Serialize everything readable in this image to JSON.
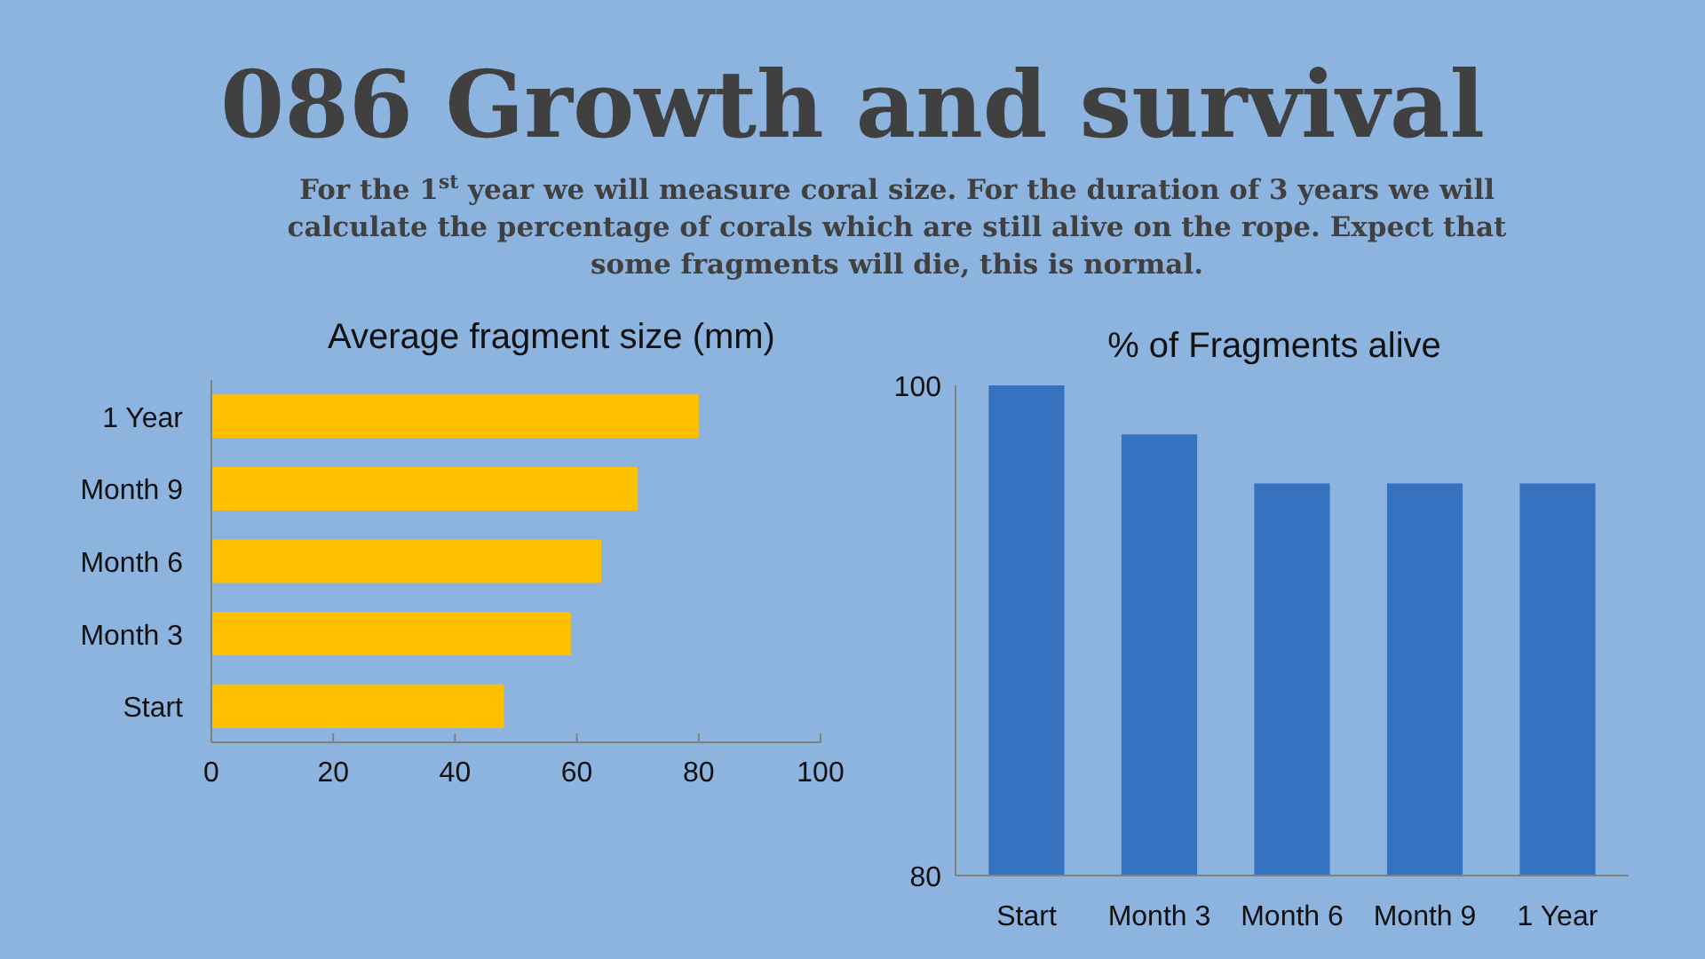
{
  "chart_data": [
    {
      "type": "other",
      "title": "086 Growth and survival",
      "subtitle": "For the 1$^{st}$ year we will measure coral size. For the duration of 3 years we will calculate the percentage of corals which are still alive on the rope. Expect that some fragments will die, this is normal."
    },
    {
      "type": "bar",
      "orientation": "horizontal",
      "title": "Average fragment size (mm)",
      "categories": [
        "1 Year",
        "Month 9",
        "Month 6",
        "Month 3",
        "Start"
      ],
      "values": [
        80,
        70,
        64,
        59,
        48
      ],
      "color": "#ffc000",
      "xlim": [
        0,
        100
      ],
      "xticks": [
        0,
        20,
        40,
        60,
        80,
        100
      ],
      "grid": false
    },
    {
      "type": "bar",
      "title": "% of Fragments alive",
      "categories": [
        "Start",
        "Month 3",
        "Month 6",
        "Month 9",
        "1 Year"
      ],
      "values": [
        100,
        98,
        96,
        96,
        96
      ],
      "color": "#3672c0",
      "ylim": [
        80,
        100
      ],
      "yticks": [
        80,
        100
      ],
      "grid": false
    }
  ]
}
